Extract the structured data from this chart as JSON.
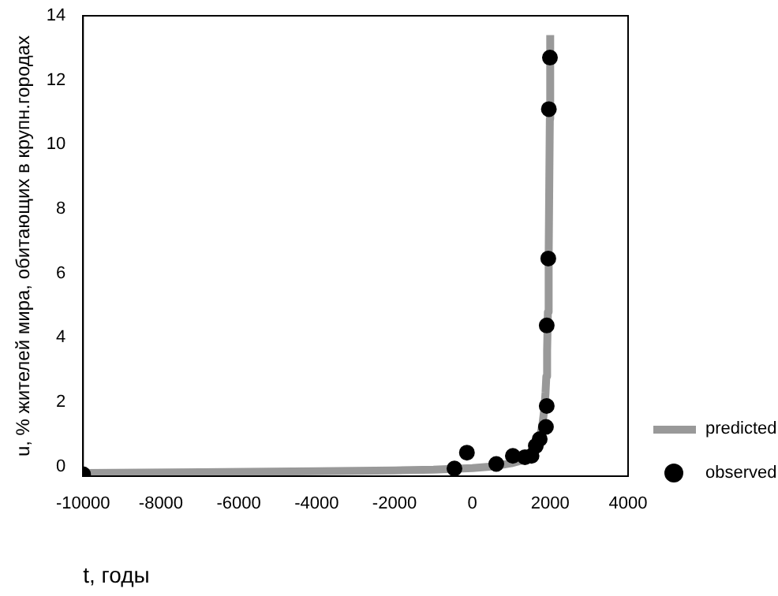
{
  "chart_data": {
    "type": "scatter",
    "xlabel": "t, годы",
    "ylabel": "u, % жителей мира, обитающих в крупн.городах",
    "xlim": [
      -10000,
      4000
    ],
    "xticks": [
      -10000,
      -8000,
      -6000,
      -4000,
      -2000,
      0,
      2000,
      4000
    ],
    "ylim": [
      -0.3,
      14
    ],
    "yticks": [
      0,
      2,
      4,
      6,
      8,
      10,
      12,
      14
    ],
    "grid": false,
    "legend": "right",
    "series": [
      {
        "name": "predicted",
        "type": "line",
        "color": "#999999",
        "marker": "none",
        "line_style": "solid",
        "x": [
          -10000,
          -7000,
          -4000,
          -2000,
          -1000,
          0,
          500,
          1000,
          1300,
          1500,
          1600,
          1700,
          1750,
          1800,
          1850,
          1880,
          1900,
          1920,
          1940,
          1960,
          1990,
          2000
        ],
        "values": [
          -0.2,
          -0.18,
          -0.15,
          -0.12,
          -0.1,
          -0.05,
          0.0,
          0.1,
          0.2,
          0.35,
          0.5,
          0.75,
          1.0,
          1.3,
          1.8,
          2.3,
          2.8,
          3.6,
          4.8,
          6.5,
          10.8,
          13.4
        ]
      },
      {
        "name": "observed",
        "type": "scatter",
        "color": "#000000",
        "marker": "circle",
        "x": [
          -10000,
          -460,
          -140,
          615,
          1040,
          1350,
          1520,
          1630,
          1730,
          1890,
          1910,
          1910,
          1950,
          1965,
          1993
        ],
        "values": [
          -0.24,
          -0.06,
          0.43,
          0.08,
          0.33,
          0.29,
          0.33,
          0.64,
          0.85,
          1.23,
          1.88,
          4.38,
          6.46,
          11.1,
          12.7
        ]
      }
    ]
  }
}
